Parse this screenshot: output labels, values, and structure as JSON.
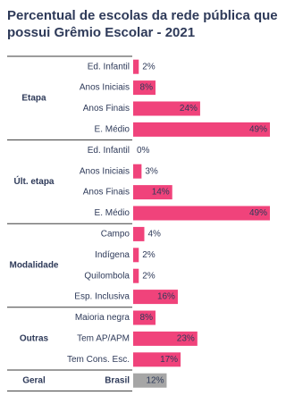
{
  "chart_data": {
    "type": "grouped-hbar",
    "title": "Percentual de escolas da rede pública que possui Grêmio Escolar - 2021",
    "groups": [
      {
        "name": "Etapa",
        "color": "#f0437b",
        "categories": [
          "Ed. Infantil",
          "Anos Iniciais",
          "Anos Finais",
          "E. Médio"
        ],
        "values": [
          2,
          8,
          24,
          49
        ],
        "value_labels": [
          "2%",
          "8%",
          "24%",
          "49%"
        ]
      },
      {
        "name": "Últ. etapa",
        "color": "#f0437b",
        "categories": [
          "Ed. Infantil",
          "Anos Iniciais",
          "Anos Finais",
          "E. Médio"
        ],
        "values": [
          0,
          3,
          14,
          49
        ],
        "value_labels": [
          "0%",
          "3%",
          "14%",
          "49%"
        ]
      },
      {
        "name": "Modalidade",
        "color": "#f0437b",
        "categories": [
          "Campo",
          "Indígena",
          "Quilombola",
          "Esp. Inclusiva"
        ],
        "values": [
          4,
          2,
          2,
          16
        ],
        "value_labels": [
          "4%",
          "2%",
          "2%",
          "16%"
        ]
      },
      {
        "name": "Outras",
        "color": "#f0437b",
        "categories": [
          "Maioria negra",
          "Tem AP/APM",
          "Tem Cons. Esc."
        ],
        "values": [
          8,
          23,
          17
        ],
        "value_labels": [
          "8%",
          "23%",
          "17%"
        ]
      },
      {
        "name": "Geral",
        "color": "#a6a6a6",
        "categories": [
          "Brasil"
        ],
        "values": [
          12
        ],
        "value_labels": [
          "12%"
        ]
      }
    ]
  }
}
